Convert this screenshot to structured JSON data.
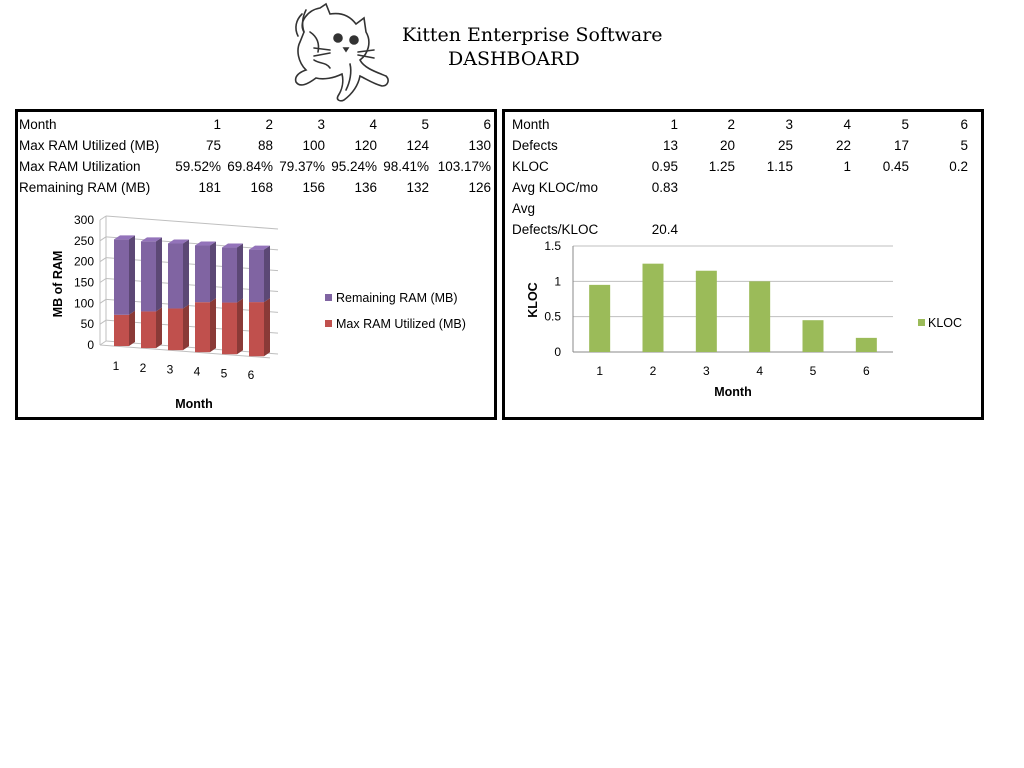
{
  "header": {
    "title_line1": "Kitten Enterprise Software",
    "title_line2": "DASHBOARD",
    "logo_icon": "kitten-icon"
  },
  "ram_table": {
    "header": [
      "Month",
      "1",
      "2",
      "3",
      "4",
      "5",
      "6"
    ],
    "rows": [
      [
        "Max RAM Utilized (MB)",
        "75",
        "88",
        "100",
        "120",
        "124",
        "130"
      ],
      [
        "Max RAM Utilization",
        "59.52%",
        "69.84%",
        "79.37%",
        "95.24%",
        "98.41%",
        "103.17%"
      ],
      [
        "Remaining RAM (MB)",
        "181",
        "168",
        "156",
        "136",
        "132",
        "126"
      ]
    ]
  },
  "kloc_table": {
    "header": [
      "Month",
      "1",
      "2",
      "3",
      "4",
      "5",
      "6"
    ],
    "rows": [
      [
        "Defects",
        "13",
        "20",
        "25",
        "22",
        "17",
        "5"
      ],
      [
        "KLOC",
        "0.95",
        "1.25",
        "1.15",
        "1",
        "0.45",
        "0.2"
      ],
      [
        "Avg KLOC/mo",
        "0.83",
        "",
        "",
        "",
        "",
        ""
      ]
    ],
    "defects_label_line1": "Avg",
    "defects_label_line2": "Defects/KLOC",
    "defects_value": "20.4"
  },
  "chart_data": [
    {
      "type": "bar",
      "stacked": true,
      "three_d": true,
      "categories": [
        "1",
        "2",
        "3",
        "4",
        "5",
        "6"
      ],
      "series": [
        {
          "name": "Max RAM Utilized (MB)",
          "values": [
            75,
            88,
            100,
            120,
            124,
            130
          ],
          "color": "#C0504D"
        },
        {
          "name": "Remaining RAM (MB)",
          "values": [
            181,
            168,
            156,
            136,
            132,
            126
          ],
          "color": "#8064A2"
        }
      ],
      "title": "",
      "xlabel": "Month",
      "ylabel": "MB of RAM",
      "ylim": [
        0,
        300
      ],
      "yticks": [
        "0",
        "50",
        "100",
        "150",
        "200",
        "250",
        "300"
      ],
      "grid": true,
      "legend": "right",
      "legend_order": [
        "Remaining RAM (MB)",
        "Max RAM Utilized (MB)"
      ]
    },
    {
      "type": "bar",
      "categories": [
        "1",
        "2",
        "3",
        "4",
        "5",
        "6"
      ],
      "series": [
        {
          "name": "KLOC",
          "values": [
            0.95,
            1.25,
            1.15,
            1,
            0.45,
            0.2
          ],
          "color": "#9BBB59"
        }
      ],
      "title": "",
      "xlabel": "Month",
      "ylabel": "KLOC",
      "ylim": [
        0,
        1.5
      ],
      "yticks": [
        "0",
        "0.5",
        "1",
        "1.5"
      ],
      "grid": true,
      "legend": "right"
    }
  ]
}
